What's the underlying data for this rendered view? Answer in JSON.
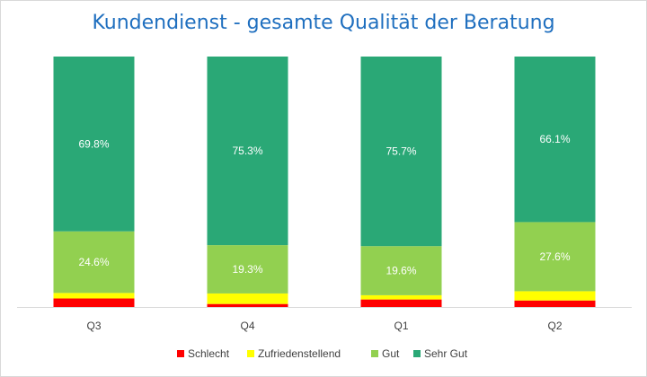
{
  "chart_data": {
    "type": "bar",
    "stacked": true,
    "title": "Kundendienst - gesamte Qualität der Beratung",
    "categories": [
      "Q3",
      "Q4",
      "Q1",
      "Q2"
    ],
    "series": [
      {
        "name": "Schlecht",
        "color": "#ff0000",
        "values": [
          3.4,
          1.2,
          3.0,
          2.6
        ]
      },
      {
        "name": "Zufriedenstellend",
        "color": "#ffff00",
        "values": [
          2.2,
          4.2,
          1.7,
          3.7
        ]
      },
      {
        "name": "Gut",
        "color": "#92d050",
        "values": [
          24.6,
          19.3,
          19.6,
          27.6
        ],
        "labels": [
          "24.6%",
          "19.3%",
          "19.6%",
          "27.6%"
        ]
      },
      {
        "name": "Sehr Gut",
        "color": "#2aa876",
        "values": [
          69.8,
          75.3,
          75.7,
          66.1
        ],
        "labels": [
          "69.8%",
          "75.3%",
          "75.7%",
          "66.1%"
        ]
      }
    ],
    "ylim": [
      0,
      100
    ],
    "grid": false,
    "legend_position": "bottom"
  }
}
